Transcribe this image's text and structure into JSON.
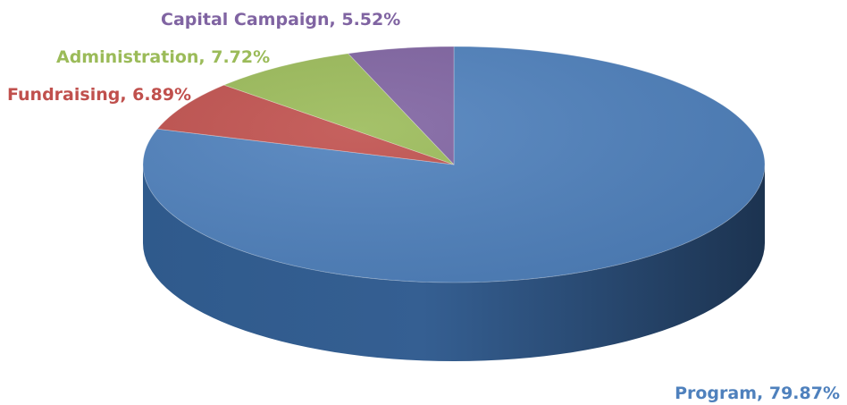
{
  "chart_data": {
    "type": "pie",
    "style": "3d",
    "title": "",
    "slices": [
      {
        "name": "Program",
        "value": 79.87,
        "label": "Program, 79.87%",
        "color": "#4F81BD"
      },
      {
        "name": "Fundraising",
        "value": 6.89,
        "label": "Fundraising, 6.89%",
        "color": "#C0504D"
      },
      {
        "name": "Administration",
        "value": 7.72,
        "label": "Administration, 7.72%",
        "color": "#9BBB59"
      },
      {
        "name": "Capital Campaign",
        "value": 5.52,
        "label": "Capital Campaign, 5.52%",
        "color": "#8064A2"
      }
    ]
  }
}
